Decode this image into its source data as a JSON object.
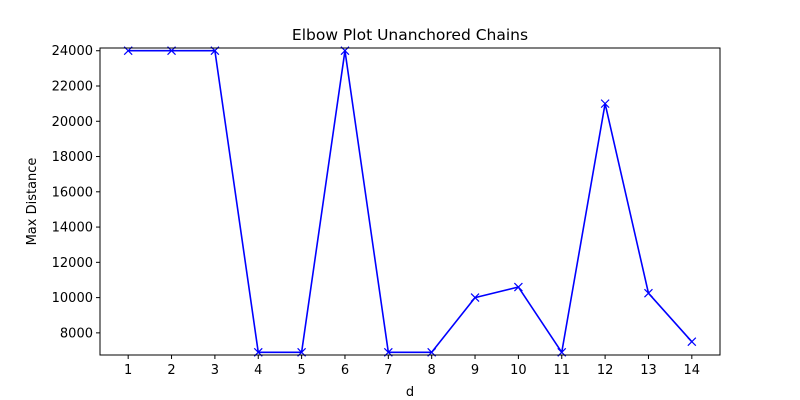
{
  "chart_data": {
    "type": "line",
    "title": "Elbow Plot Unanchored Chains",
    "xlabel": "d",
    "ylabel": "Max Distance",
    "x": [
      1,
      2,
      3,
      4,
      5,
      6,
      7,
      8,
      9,
      10,
      11,
      12,
      13,
      14
    ],
    "series": [
      {
        "values": [
          24000,
          24000,
          24000,
          6900,
          6900,
          24000,
          6900,
          6900,
          10000,
          10600,
          6900,
          21000,
          10250,
          7500
        ],
        "color": "#0000ff",
        "marker": "x"
      }
    ],
    "xticks": [
      "1",
      "2",
      "3",
      "4",
      "5",
      "6",
      "7",
      "8",
      "9",
      "10",
      "11",
      "12",
      "13",
      "14"
    ],
    "yticks": [
      "8000",
      "10000",
      "12000",
      "14000",
      "16000",
      "18000",
      "20000",
      "22000",
      "24000"
    ],
    "xlim": [
      0.35,
      14.65
    ],
    "ylim": [
      6745,
      24155
    ],
    "grid": false
  }
}
